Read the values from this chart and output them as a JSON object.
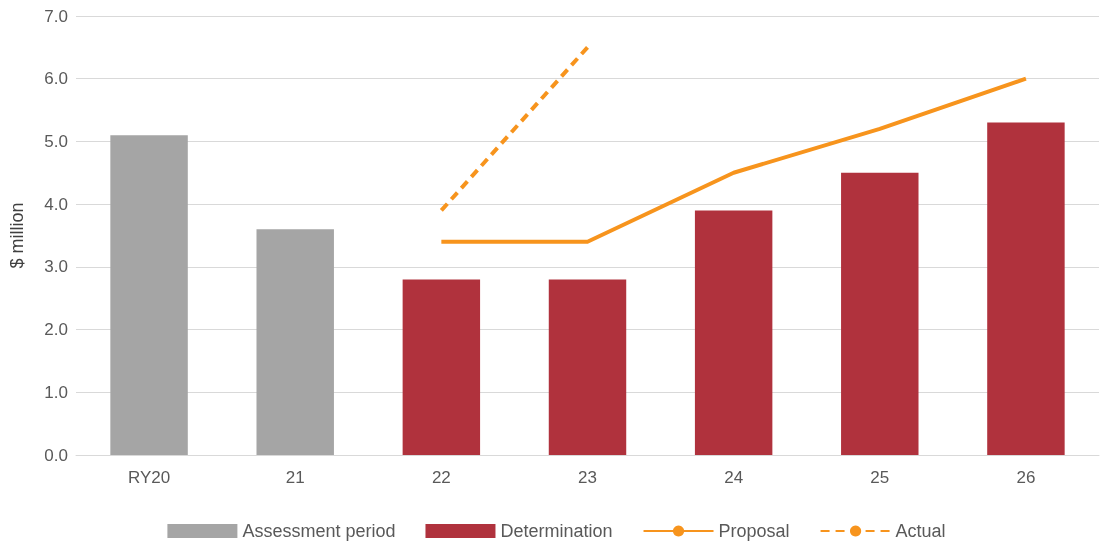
{
  "chart_data": {
    "type": "bar",
    "ylabel": "$ million",
    "categories": [
      "RY20",
      "21",
      "22",
      "23",
      "24",
      "25",
      "26"
    ],
    "series": [
      {
        "name": "Assessment period",
        "color": "#a5a5a5",
        "values": [
          5.1,
          3.6,
          null,
          null,
          null,
          null,
          null
        ]
      },
      {
        "name": "Determination",
        "color": "#b0323d",
        "values": [
          null,
          null,
          2.8,
          2.8,
          3.9,
          4.5,
          5.3
        ]
      },
      {
        "name": "Proposal",
        "type": "line",
        "color": "#f7941d",
        "line_style": "solid",
        "values": [
          null,
          null,
          3.4,
          3.4,
          4.5,
          5.2,
          6.0
        ]
      },
      {
        "name": "Actual",
        "type": "line",
        "color": "#f7941d",
        "line_style": "dashed",
        "values": [
          null,
          null,
          3.9,
          6.5,
          null,
          null,
          null
        ]
      }
    ],
    "ylim": [
      0,
      7
    ],
    "yticks": [
      {
        "value": 0,
        "label": "0.0"
      },
      {
        "value": 1,
        "label": "1.0"
      },
      {
        "value": 2,
        "label": "2.0"
      },
      {
        "value": 3,
        "label": "3.0"
      },
      {
        "value": 4,
        "label": "4.0"
      },
      {
        "value": 5,
        "label": "5.0"
      },
      {
        "value": 6,
        "label": "6.0"
      },
      {
        "value": 7,
        "label": "7.0"
      }
    ],
    "grid": "y",
    "legend": "bottom",
    "marker": "none"
  }
}
